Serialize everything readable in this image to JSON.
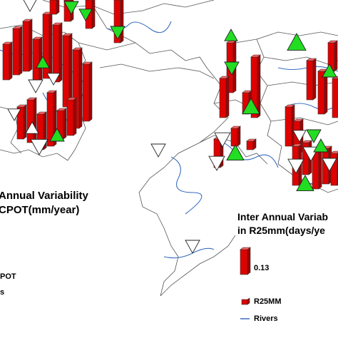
{
  "legend_left": {
    "title_line1": "Annual Variability",
    "title_line2": "CPOT(mm/year)",
    "item_label": "POT",
    "rivers_label": "s"
  },
  "legend_right": {
    "title_line1": "Inter Annual Variab",
    "title_line2": "in R25mm(days/ye",
    "scale_value": "0.13",
    "item_label": "R25MM",
    "rivers_label": "Rivers"
  },
  "colors": {
    "bar_fill": "#e00000",
    "bar_side": "#a00000",
    "triangle_up": "#22dd22",
    "triangle_down_fill": "#ffffff",
    "river": "#3a6fc0",
    "boundary": "#555555"
  }
}
